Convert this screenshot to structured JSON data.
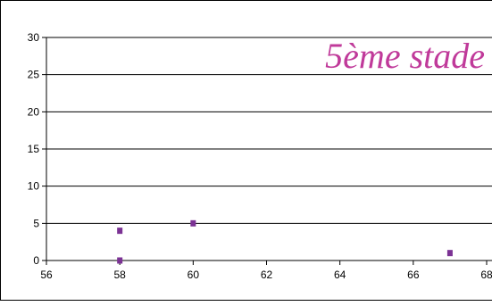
{
  "chart_data": {
    "type": "scatter",
    "title": "5ème stade",
    "xlabel": "",
    "ylabel": "",
    "xlim": [
      56,
      68
    ],
    "ylim": [
      0,
      30
    ],
    "x_ticks": [
      56,
      58,
      60,
      62,
      64,
      66,
      68
    ],
    "y_ticks": [
      0,
      5,
      10,
      15,
      20,
      25,
      30
    ],
    "grid": "horizontal",
    "legend": "none",
    "series": [
      {
        "color": "#7b3294",
        "points": [
          {
            "x": 58,
            "y": 4
          },
          {
            "x": 58,
            "y": 0
          },
          {
            "x": 60,
            "y": 5
          },
          {
            "x": 67,
            "y": 1
          }
        ]
      }
    ],
    "colors": {
      "title": "#c03a9a",
      "marker": "#7b3294",
      "grid": "#000000"
    }
  }
}
